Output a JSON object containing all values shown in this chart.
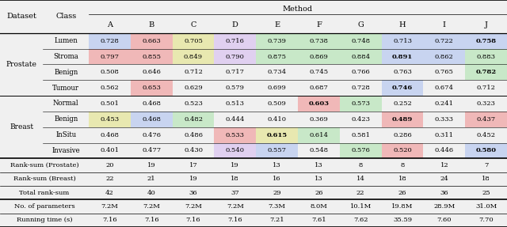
{
  "methods": [
    "A",
    "B",
    "C",
    "D",
    "E",
    "F",
    "G",
    "H",
    "I",
    "J"
  ],
  "values": [
    [
      "0.728",
      "0.663",
      "0.705",
      "0.716",
      "0.739",
      "0.738",
      "0.748",
      "0.713",
      "0.722",
      "0.758"
    ],
    [
      "0.797",
      "0.855",
      "0.849",
      "0.790",
      "0.875",
      "0.869",
      "0.884",
      "0.891",
      "0.862",
      "0.883"
    ],
    [
      "0.508",
      "0.646",
      "0.712",
      "0.717",
      "0.734",
      "0.745",
      "0.766",
      "0.763",
      "0.765",
      "0.782"
    ],
    [
      "0.562",
      "0.653",
      "0.629",
      "0.579",
      "0.699",
      "0.687",
      "0.728",
      "0.746",
      "0.674",
      "0.712"
    ],
    [
      "0.501",
      "0.468",
      "0.523",
      "0.513",
      "0.509",
      "0.603",
      "0.573",
      "0.252",
      "0.241",
      "0.323"
    ],
    [
      "0.453",
      "0.468",
      "0.482",
      "0.444",
      "0.410",
      "0.369",
      "0.423",
      "0.489",
      "0.333",
      "0.437"
    ],
    [
      "0.468",
      "0.476",
      "0.486",
      "0.533",
      "0.615",
      "0.614",
      "0.581",
      "0.286",
      "0.311",
      "0.452"
    ],
    [
      "0.401",
      "0.477",
      "0.430",
      "0.540",
      "0.557",
      "0.548",
      "0.576",
      "0.520",
      "0.446",
      "0.580"
    ]
  ],
  "bold": [
    [
      false,
      false,
      false,
      false,
      false,
      false,
      false,
      false,
      false,
      true
    ],
    [
      false,
      false,
      false,
      false,
      false,
      false,
      false,
      true,
      false,
      false
    ],
    [
      false,
      false,
      false,
      false,
      false,
      false,
      false,
      false,
      false,
      true
    ],
    [
      false,
      false,
      false,
      false,
      false,
      false,
      false,
      true,
      false,
      false
    ],
    [
      false,
      false,
      false,
      false,
      false,
      true,
      false,
      false,
      false,
      false
    ],
    [
      false,
      false,
      false,
      false,
      false,
      false,
      false,
      true,
      false,
      false
    ],
    [
      false,
      false,
      false,
      false,
      true,
      false,
      false,
      false,
      false,
      false
    ],
    [
      false,
      false,
      false,
      false,
      false,
      false,
      false,
      false,
      false,
      true
    ]
  ],
  "cell_colors": [
    [
      "#c8d4f0",
      "#f0b8b8",
      "#e8e8b0",
      "#e0d0f0",
      "#c8e8c8",
      "#c8e8c8",
      "#c8e8c8",
      "#c8d4f0",
      "#c8d4f0",
      "#c8d4f0"
    ],
    [
      "#f0b8b8",
      "#f0b8b8",
      "#e8e8b0",
      "#e0d0f0",
      "#c8e8c8",
      "#c8e8c8",
      "#c8e8c8",
      "#c8d4f0",
      "#c8d4f0",
      "#c8e8c8"
    ],
    [
      "none",
      "none",
      "none",
      "none",
      "none",
      "none",
      "none",
      "none",
      "none",
      "#c8e8c8"
    ],
    [
      "none",
      "#f0b8b8",
      "none",
      "none",
      "none",
      "none",
      "none",
      "#c8d4f0",
      "none",
      "none"
    ],
    [
      "none",
      "none",
      "none",
      "none",
      "none",
      "#f0b8b8",
      "#c8e8c8",
      "none",
      "none",
      "none"
    ],
    [
      "#e8e8b0",
      "#c8d4f0",
      "#c8e8c8",
      "none",
      "none",
      "none",
      "none",
      "#f0b8b8",
      "none",
      "#f0b8b8"
    ],
    [
      "none",
      "none",
      "none",
      "#f0b8b8",
      "#e8e8b0",
      "#c8e8c8",
      "none",
      "none",
      "none",
      "none"
    ],
    [
      "none",
      "none",
      "none",
      "#e0d0f0",
      "#c8d4f0",
      "none",
      "#c8e8c8",
      "#f0b8b8",
      "none",
      "#c8d4f0"
    ]
  ],
  "class_labels": [
    "Lumen",
    "Stroma",
    "Benign",
    "Tumour",
    "Normal",
    "Benign",
    "InSitu",
    "Invasive"
  ],
  "rank_sum_prostate": [
    "20",
    "19",
    "17",
    "19",
    "13",
    "13",
    "8",
    "8",
    "12",
    "7"
  ],
  "rank_sum_breast": [
    "22",
    "21",
    "19",
    "18",
    "16",
    "13",
    "14",
    "18",
    "24",
    "18"
  ],
  "total_rank_sum": [
    "42",
    "40",
    "36",
    "37",
    "29",
    "26",
    "22",
    "26",
    "36",
    "25"
  ],
  "num_parameters": [
    "7.2M",
    "7.2M",
    "7.2M",
    "7.2M",
    "7.3M",
    "8.0M",
    "10.1M",
    "19.8M",
    "28.9M",
    "31.0M"
  ],
  "running_time": [
    "7.16",
    "7.16",
    "7.16",
    "7.16",
    "7.21",
    "7.61",
    "7.62",
    "35.59",
    "7.60",
    "7.70"
  ],
  "bg_color": "#f0f0f0"
}
